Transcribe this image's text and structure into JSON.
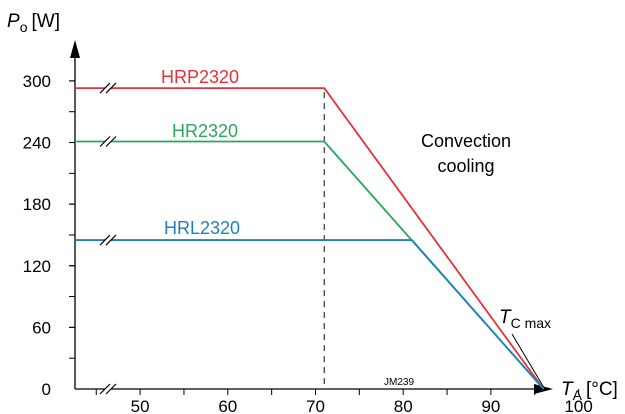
{
  "chart_data": {
    "type": "line",
    "y_axis": {
      "symbol": "P",
      "subscript": "o",
      "unit": "[W]",
      "ylim": [
        0,
        330
      ],
      "ticks": [
        0,
        60,
        120,
        180,
        240,
        300
      ],
      "minor_step": 30
    },
    "x_axis": {
      "symbol": "T",
      "subscript": "A",
      "unit": "[°C]",
      "xlim": [
        40,
        103
      ],
      "ticks": [
        50,
        60,
        70,
        80,
        90,
        100
      ],
      "minor_step": 5,
      "axis_break": true
    },
    "series": [
      {
        "name": "HRP2320",
        "color": "#e8303a",
        "x": [
          40,
          71,
          96
        ],
        "y": [
          293,
          293,
          0
        ]
      },
      {
        "name": "HR2320",
        "color": "#27a85a",
        "x": [
          40,
          71,
          96
        ],
        "y": [
          241,
          241,
          0
        ]
      },
      {
        "name": "HRL2320",
        "color": "#1f7fc0",
        "x": [
          40,
          81,
          96
        ],
        "y": [
          145,
          145,
          0
        ]
      }
    ],
    "vertical_reference": {
      "x": 71,
      "style": "dashed"
    },
    "annotations": {
      "convection": [
        "Convection",
        "cooling"
      ],
      "tc_max": {
        "symbol": "T",
        "subscript": "C max",
        "x": 96
      },
      "code": "JM239"
    },
    "grid": false,
    "legend": "inline labels"
  }
}
